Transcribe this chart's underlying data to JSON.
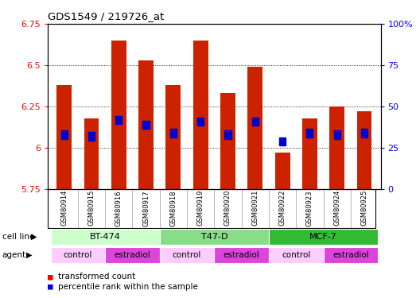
{
  "title": "GDS1549 / 219726_at",
  "samples": [
    "GSM80914",
    "GSM80915",
    "GSM80916",
    "GSM80917",
    "GSM80918",
    "GSM80919",
    "GSM80920",
    "GSM80921",
    "GSM80922",
    "GSM80923",
    "GSM80924",
    "GSM80925"
  ],
  "red_values": [
    6.38,
    6.18,
    6.65,
    6.53,
    6.38,
    6.65,
    6.33,
    6.49,
    5.97,
    6.18,
    6.25,
    6.22
  ],
  "blue_values": [
    6.08,
    6.07,
    6.17,
    6.14,
    6.09,
    6.16,
    6.08,
    6.16,
    6.04,
    6.09,
    6.08,
    6.09
  ],
  "ymin": 5.75,
  "ymax": 6.75,
  "yticks": [
    5.75,
    6.0,
    6.25,
    6.5,
    6.75
  ],
  "ytick_labels": [
    "5.75",
    "6",
    "6.25",
    "6.5",
    "6.75"
  ],
  "right_yticks": [
    0.0,
    0.25,
    0.5,
    0.75,
    1.0
  ],
  "right_ytick_labels": [
    "0",
    "25",
    "50",
    "75",
    "100%"
  ],
  "bar_color": "#cc2200",
  "blue_color": "#0000cc",
  "bar_width": 0.55,
  "cell_line_data": [
    {
      "label": "BT-474",
      "start": 0,
      "end": 3,
      "color": "#ccffcc"
    },
    {
      "label": "T47-D",
      "start": 4,
      "end": 7,
      "color": "#88dd88"
    },
    {
      "label": "MCF-7",
      "start": 8,
      "end": 11,
      "color": "#33bb33"
    }
  ],
  "agent_data": [
    {
      "label": "control",
      "start": 0,
      "end": 1,
      "color": "#ffccff"
    },
    {
      "label": "estradiol",
      "start": 2,
      "end": 3,
      "color": "#dd44dd"
    },
    {
      "label": "control",
      "start": 4,
      "end": 5,
      "color": "#ffccff"
    },
    {
      "label": "estradiol",
      "start": 6,
      "end": 7,
      "color": "#dd44dd"
    },
    {
      "label": "control",
      "start": 8,
      "end": 9,
      "color": "#ffccff"
    },
    {
      "label": "estradiol",
      "start": 10,
      "end": 11,
      "color": "#dd44dd"
    }
  ],
  "legend_red": "transformed count",
  "legend_blue": "percentile rank within the sample",
  "bg_color": "#d3d3d3",
  "plot_bg": "#ffffff",
  "fig_bg": "#ffffff"
}
